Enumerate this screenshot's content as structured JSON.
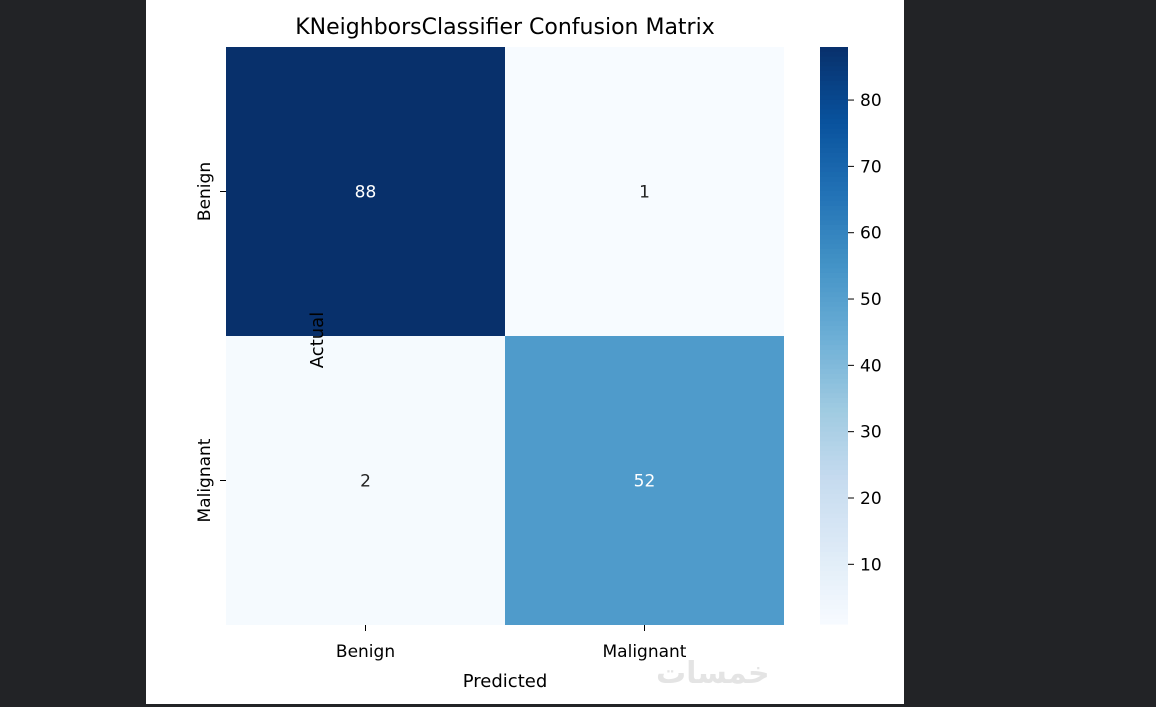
{
  "chart_data": {
    "type": "heatmap",
    "title": "KNeighborsClassifier Confusion Matrix",
    "xlabel": "Predicted",
    "ylabel": "Actual",
    "x_categories": [
      "Benign",
      "Malignant"
    ],
    "y_categories": [
      "Benign",
      "Malignant"
    ],
    "values": [
      [
        88,
        1
      ],
      [
        2,
        52
      ]
    ],
    "colormap": "Blues",
    "colorbar": {
      "vmin": 1,
      "vmax": 88,
      "ticks": [
        10,
        20,
        30,
        40,
        50,
        60,
        70,
        80
      ]
    }
  },
  "watermark": "خمسات"
}
